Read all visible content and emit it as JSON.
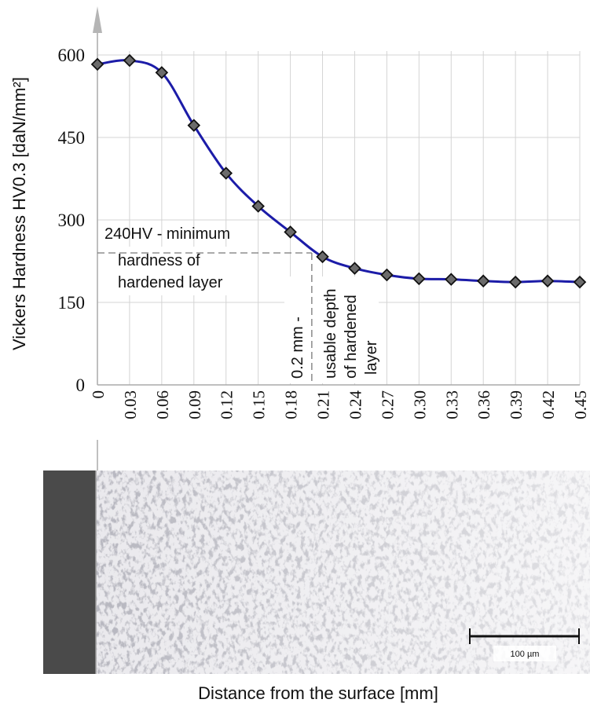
{
  "chart_data": {
    "type": "line",
    "y_label": "Vickers Hardness HV0.3 [daN/mm²]",
    "x_label": "Distance from the surface [mm]",
    "x": [
      0,
      0.03,
      0.06,
      0.09,
      0.12,
      0.15,
      0.18,
      0.21,
      0.24,
      0.27,
      0.3,
      0.33,
      0.36,
      0.39,
      0.42,
      0.45
    ],
    "series": [
      {
        "color": "#1c1ca8",
        "values": [
          583,
          590,
          568,
          472,
          385,
          325,
          278,
          233,
          212,
          200,
          193,
          192,
          189,
          187,
          189,
          187
        ]
      }
    ],
    "xlim": [
      0,
      0.45
    ],
    "ylim": [
      0,
      600
    ],
    "xticks": [
      0,
      0.03,
      0.06,
      0.09,
      0.12,
      0.15,
      0.18,
      0.21,
      0.24,
      0.27,
      {
        "value": 0.3,
        "label": "0.30"
      },
      0.33,
      0.36,
      0.39,
      0.42,
      0.45
    ],
    "yticks": [
      0,
      150,
      300,
      450,
      600
    ],
    "grid": true,
    "reference_lines": {
      "y": 240,
      "x": 0.2
    },
    "annotations": {
      "hardness": [
        "240HV - minimum",
        "hardness of",
        "hardened layer"
      ],
      "depth": [
        "0.2 mm -",
        "usable depth",
        "of hardened",
        "layer"
      ]
    }
  },
  "micrograph": {
    "scale_label": "100 µm"
  }
}
